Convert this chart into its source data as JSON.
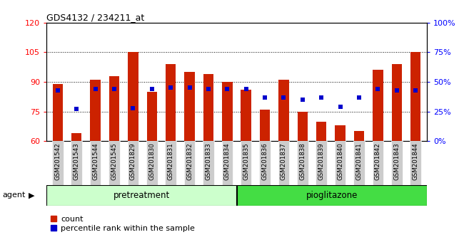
{
  "title": "GDS4132 / 234211_at",
  "categories": [
    "GSM201542",
    "GSM201543",
    "GSM201544",
    "GSM201545",
    "GSM201829",
    "GSM201830",
    "GSM201831",
    "GSM201832",
    "GSM201833",
    "GSM201834",
    "GSM201835",
    "GSM201836",
    "GSM201837",
    "GSM201838",
    "GSM201839",
    "GSM201840",
    "GSM201841",
    "GSM201842",
    "GSM201843",
    "GSM201844"
  ],
  "bar_values": [
    89,
    64,
    91,
    93,
    105,
    85,
    99,
    95,
    94,
    90,
    86,
    76,
    91,
    75,
    70,
    68,
    65,
    96,
    99,
    105
  ],
  "dot_pct": [
    43,
    27,
    44,
    44,
    28,
    44,
    45,
    45,
    44,
    44,
    44,
    37,
    37,
    35,
    37,
    29,
    37,
    44,
    43,
    43
  ],
  "bar_color": "#cc2200",
  "dot_color": "#0000cc",
  "ylim_left": [
    60,
    120
  ],
  "ylim_right": [
    0,
    100
  ],
  "yticks_left": [
    60,
    75,
    90,
    105,
    120
  ],
  "yticks_right": [
    0,
    25,
    50,
    75,
    100
  ],
  "yticklabels_right": [
    "0%",
    "25%",
    "50%",
    "75%",
    "100%"
  ],
  "gridlines": [
    75,
    90,
    105
  ],
  "n_pretreatment": 10,
  "pretreatment_label": "pretreatment",
  "pioglitazone_label": "pioglitazone",
  "agent_label": "agent",
  "legend_count": "count",
  "legend_percentile": "percentile rank within the sample",
  "bar_width": 0.55,
  "bg_color_pretreatment": "#ccffcc",
  "bg_color_pioglitazone": "#44dd44",
  "tick_bg_color": "#cccccc"
}
